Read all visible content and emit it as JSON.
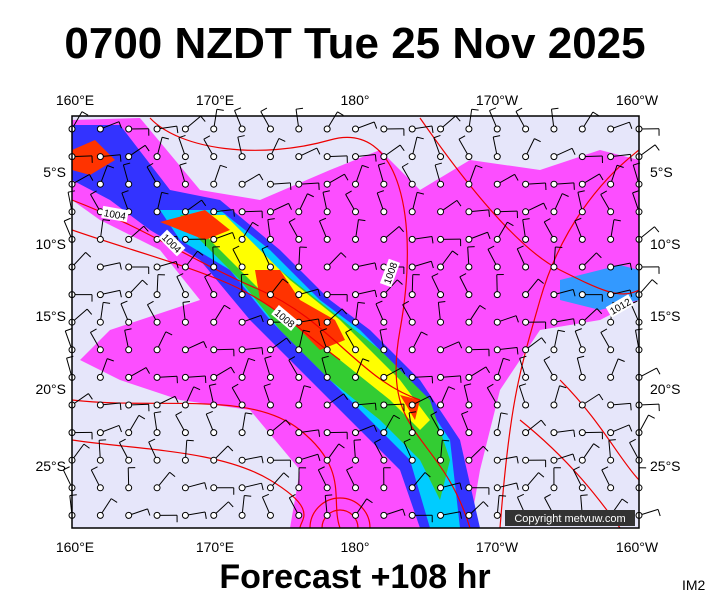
{
  "title": "0700 NZDT Tue 25 Nov 2025",
  "longitude_labels": [
    "160°E",
    "170°E",
    "180°",
    "170°W",
    "160°W"
  ],
  "latitude_labels": [
    "5°S",
    "10°S",
    "15°S",
    "20°S",
    "25°S"
  ],
  "isobar_labels": [
    "1004",
    "1004",
    "1008",
    "1008",
    "1012"
  ],
  "copyright": "Copyright metvuw.com",
  "footer": "Forecast +108 hr",
  "image_id": "IM2"
}
